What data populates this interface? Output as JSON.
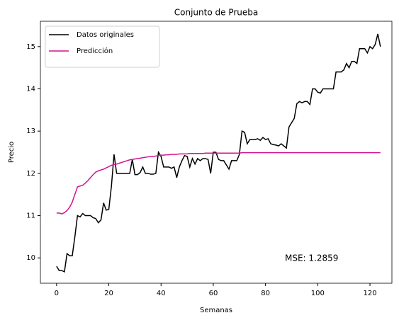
{
  "chart_data": {
    "type": "line",
    "title": "Conjunto de Prueba",
    "xlabel": "Semanas",
    "ylabel": "Precio",
    "annotation": "MSE: 1.2859",
    "x": [
      0,
      1,
      2,
      3,
      4,
      5,
      6,
      7,
      8,
      9,
      10,
      11,
      12,
      13,
      14,
      15,
      16,
      17,
      18,
      19,
      20,
      21,
      22,
      23,
      24,
      25,
      26,
      27,
      28,
      29,
      30,
      31,
      32,
      33,
      34,
      35,
      36,
      37,
      38,
      39,
      40,
      41,
      42,
      43,
      44,
      45,
      46,
      47,
      48,
      49,
      50,
      51,
      52,
      53,
      54,
      55,
      56,
      57,
      58,
      59,
      60,
      61,
      62,
      63,
      64,
      65,
      66,
      67,
      68,
      69,
      70,
      71,
      72,
      73,
      74,
      75,
      76,
      77,
      78,
      79,
      80,
      81,
      82,
      83,
      84,
      85,
      86,
      87,
      88,
      89,
      90,
      91,
      92,
      93,
      94,
      95,
      96,
      97,
      98,
      99,
      100,
      101,
      102,
      103,
      104,
      105,
      106,
      107,
      108,
      109,
      110,
      111,
      112,
      113,
      114,
      115,
      116,
      117,
      118,
      119,
      120,
      121,
      122,
      123,
      124
    ],
    "series": [
      {
        "name": "Datos originales",
        "color": "#000000",
        "values": [
          9.8,
          9.7,
          9.7,
          9.67,
          10.1,
          10.05,
          10.05,
          10.5,
          11.0,
          10.97,
          11.05,
          11.0,
          11.0,
          11.0,
          10.95,
          10.93,
          10.83,
          10.9,
          11.3,
          11.13,
          11.15,
          11.7,
          12.45,
          12.0,
          12.0,
          12.0,
          12.0,
          12.0,
          12.0,
          12.33,
          11.97,
          11.97,
          12.02,
          12.15,
          12.0,
          12.0,
          11.98,
          11.98,
          12.0,
          12.5,
          12.4,
          12.15,
          12.15,
          12.15,
          12.12,
          12.15,
          11.9,
          12.15,
          12.3,
          12.42,
          12.4,
          12.15,
          12.35,
          12.22,
          12.35,
          12.3,
          12.35,
          12.35,
          12.33,
          12.0,
          12.5,
          12.5,
          12.33,
          12.3,
          12.3,
          12.2,
          12.1,
          12.3,
          12.3,
          12.3,
          12.45,
          13.0,
          12.97,
          12.7,
          12.8,
          12.8,
          12.8,
          12.82,
          12.78,
          12.85,
          12.8,
          12.82,
          12.7,
          12.68,
          12.67,
          12.65,
          12.7,
          12.65,
          12.6,
          13.1,
          13.2,
          13.3,
          13.65,
          13.7,
          13.67,
          13.7,
          13.7,
          13.63,
          14.0,
          14.0,
          13.92,
          13.9,
          14.0,
          14.0,
          14.0,
          14.0,
          14.0,
          14.4,
          14.4,
          14.4,
          14.45,
          14.6,
          14.5,
          14.65,
          14.65,
          14.6,
          14.95,
          14.95,
          14.95,
          14.85,
          15.0,
          14.95,
          15.05,
          15.3,
          15.0
        ]
      },
      {
        "name": "Predicción",
        "color": "#d4148c",
        "values": [
          11.06,
          11.06,
          11.04,
          11.07,
          11.12,
          11.2,
          11.32,
          11.5,
          11.68,
          11.7,
          11.72,
          11.77,
          11.83,
          11.9,
          11.97,
          12.03,
          12.06,
          12.08,
          12.1,
          12.13,
          12.16,
          12.19,
          12.21,
          12.22,
          12.24,
          12.26,
          12.28,
          12.3,
          12.32,
          12.33,
          12.34,
          12.35,
          12.36,
          12.37,
          12.38,
          12.39,
          12.4,
          12.4,
          12.41,
          12.42,
          12.43,
          12.43,
          12.44,
          12.44,
          12.45,
          12.45,
          12.45,
          12.46,
          12.46,
          12.46,
          12.46,
          12.47,
          12.47,
          12.47,
          12.47,
          12.47,
          12.47,
          12.48,
          12.48,
          12.48,
          12.48,
          12.48,
          12.48,
          12.48,
          12.48,
          12.48,
          12.48,
          12.48,
          12.48,
          12.48,
          12.48,
          12.49,
          12.49,
          12.49,
          12.49,
          12.49,
          12.49,
          12.49,
          12.49,
          12.49,
          12.49,
          12.49,
          12.49,
          12.49,
          12.49,
          12.49,
          12.49,
          12.49,
          12.49,
          12.49,
          12.49,
          12.49,
          12.49,
          12.49,
          12.49,
          12.49,
          12.49,
          12.49,
          12.49,
          12.49,
          12.49,
          12.49,
          12.49,
          12.49,
          12.49,
          12.49,
          12.49,
          12.49,
          12.49,
          12.49,
          12.49,
          12.49,
          12.49,
          12.49,
          12.49,
          12.49,
          12.49,
          12.49,
          12.49,
          12.49,
          12.49,
          12.49,
          12.49,
          12.49,
          12.49
        ]
      }
    ],
    "xlim": [
      -6.2,
      128.4
    ],
    "ylim": [
      9.4,
      15.6
    ],
    "xticks": [
      0,
      20,
      40,
      60,
      80,
      100,
      120
    ],
    "yticks": [
      10,
      11,
      12,
      13,
      14,
      15
    ],
    "legend": "upper left"
  }
}
